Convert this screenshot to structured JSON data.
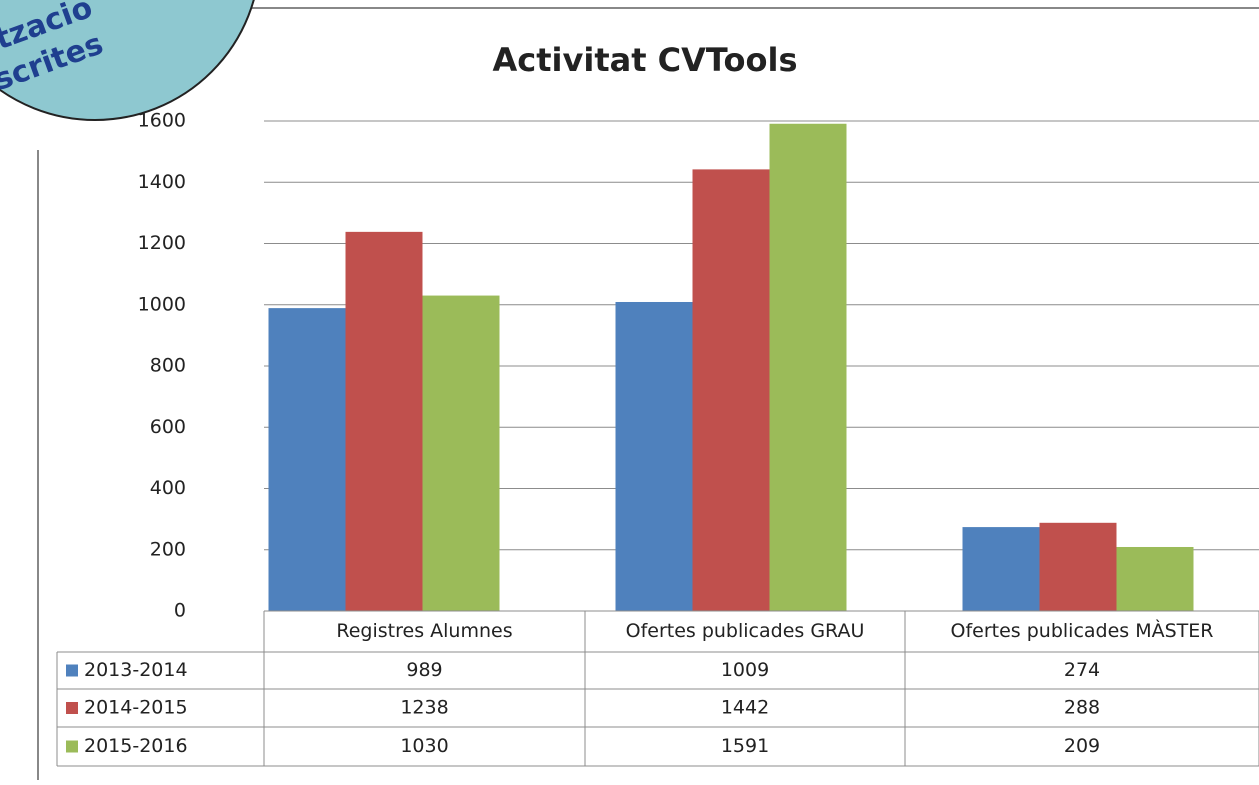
{
  "badge": {
    "lines": [
      "tzacio",
      "scrites"
    ]
  },
  "chart_data": {
    "type": "bar",
    "title": "Activitat CVTools",
    "categories": [
      "Registres Alumnes",
      "Ofertes publicades GRAU",
      "Ofertes publicades MÀSTER"
    ],
    "series": [
      {
        "name": "2013-2014",
        "color": "#4f81bd",
        "values": [
          989,
          1009,
          274
        ]
      },
      {
        "name": "2014-2015",
        "color": "#c0504d",
        "values": [
          1238,
          1442,
          288
        ]
      },
      {
        "name": "2015-2016",
        "color": "#9bbb59",
        "values": [
          1030,
          1591,
          209
        ]
      }
    ],
    "ylim": [
      0,
      1600
    ],
    "yticks": [
      0,
      200,
      400,
      600,
      800,
      1000,
      1200,
      1400,
      1600
    ],
    "grid": true,
    "data_table": true
  }
}
